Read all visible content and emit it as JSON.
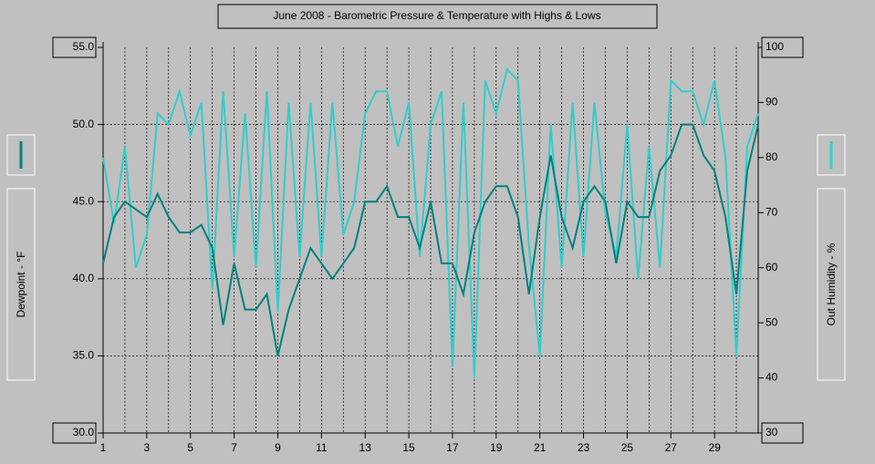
{
  "chart_data": {
    "type": "line",
    "title": "June 2008 - Barometric Pressure & Temperature with Highs & Lows",
    "ylabel": "Dewpoint - °F",
    "y2label": "Out Humidity - %",
    "xlim": [
      1,
      31
    ],
    "xticks": [
      1,
      3,
      5,
      7,
      9,
      11,
      13,
      15,
      17,
      19,
      21,
      23,
      25,
      27,
      29
    ],
    "ylim": [
      30,
      55
    ],
    "yticks": [
      {
        "value": 30,
        "label": "30.0"
      },
      {
        "value": 35,
        "label": "35.0"
      },
      {
        "value": 40,
        "label": "40.0"
      },
      {
        "value": 45,
        "label": "45.0"
      },
      {
        "value": 50,
        "label": "50.0"
      },
      {
        "value": 55,
        "label": "55.0"
      }
    ],
    "y2lim": [
      30,
      100
    ],
    "y2ticks": [
      30,
      40,
      50,
      60,
      70,
      80,
      90,
      100
    ],
    "grid": true,
    "x": [
      1,
      1.5,
      2,
      2.5,
      3,
      3.5,
      4,
      4.5,
      5,
      5.5,
      6,
      6.5,
      7,
      7.5,
      8,
      8.5,
      9,
      9.5,
      10,
      10.5,
      11,
      11.5,
      12,
      12.5,
      13,
      13.5,
      14,
      14.5,
      15,
      15.5,
      16,
      16.5,
      17,
      17.5,
      18,
      18.5,
      19,
      19.5,
      20,
      20.5,
      21,
      21.5,
      22,
      22.5,
      23,
      23.5,
      24,
      24.5,
      25,
      25.5,
      26,
      26.5,
      27,
      27.5,
      28,
      28.5,
      29,
      29.5,
      30,
      30.5,
      31
    ],
    "series": [
      {
        "name": "Dewpoint",
        "color": "#008080",
        "values": [
          41,
          44,
          45,
          44.5,
          44,
          45.5,
          44,
          43,
          43,
          43.5,
          42,
          37,
          41,
          38,
          38,
          39,
          35,
          38,
          40,
          42,
          41,
          40,
          41,
          42,
          45,
          45,
          46,
          44,
          44,
          42,
          45,
          41,
          41,
          39,
          43,
          45,
          46,
          46,
          44,
          39,
          44,
          48,
          44,
          42,
          45,
          46,
          45,
          41,
          45,
          44,
          44,
          47,
          48,
          50,
          50,
          48,
          47,
          44,
          39,
          47,
          50
        ]
      },
      {
        "name": "Out Humidity",
        "color": "#33cccc",
        "axis": "y2",
        "values": [
          80,
          68,
          82,
          60,
          66,
          88,
          86,
          92,
          84,
          90,
          56,
          92,
          62,
          88,
          60,
          92,
          52,
          90,
          62,
          90,
          62,
          90,
          66,
          72,
          88,
          92,
          92,
          82,
          90,
          62,
          86,
          92,
          42,
          90,
          40,
          94,
          88,
          96,
          94,
          64,
          44,
          86,
          60,
          90,
          62,
          90,
          70,
          62,
          86,
          58,
          82,
          60,
          94,
          92,
          92,
          86,
          94,
          80,
          44,
          82,
          88
        ]
      }
    ]
  }
}
